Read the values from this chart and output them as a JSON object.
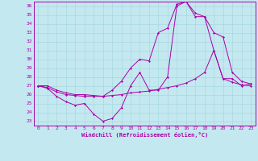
{
  "xlabel": "Windchill (Refroidissement éolien,°C)",
  "background_color": "#c4e8f0",
  "line_color": "#aa00aa",
  "xlim": [
    -0.5,
    23.5
  ],
  "ylim": [
    22.5,
    36.5
  ],
  "xticks": [
    0,
    1,
    2,
    3,
    4,
    5,
    6,
    7,
    8,
    9,
    10,
    11,
    12,
    13,
    14,
    15,
    16,
    17,
    18,
    19,
    20,
    21,
    22,
    23
  ],
  "yticks": [
    23,
    24,
    25,
    26,
    27,
    28,
    29,
    30,
    31,
    32,
    33,
    34,
    35,
    36
  ],
  "grid_color": "#a8d8e0",
  "line1_y": [
    27.0,
    26.7,
    25.8,
    25.2,
    24.8,
    25.0,
    23.8,
    23.0,
    23.3,
    24.5,
    27.0,
    28.5,
    26.5,
    26.5,
    28.0,
    36.0,
    36.5,
    34.8,
    34.8,
    31.0,
    27.8,
    27.8,
    27.0,
    27.2
  ],
  "line2_y": [
    27.0,
    26.8,
    26.3,
    26.0,
    25.9,
    25.8,
    25.8,
    25.8,
    25.9,
    26.0,
    26.2,
    26.3,
    26.4,
    26.6,
    26.8,
    27.0,
    27.3,
    27.8,
    28.5,
    31.0,
    27.8,
    27.4,
    27.1,
    27.0
  ],
  "line3_y": [
    27.0,
    27.0,
    26.5,
    26.2,
    26.0,
    26.0,
    25.9,
    25.8,
    26.5,
    27.5,
    29.0,
    30.0,
    29.8,
    33.0,
    33.5,
    36.2,
    36.5,
    35.2,
    34.8,
    33.0,
    32.5,
    28.5,
    27.5,
    27.2
  ]
}
